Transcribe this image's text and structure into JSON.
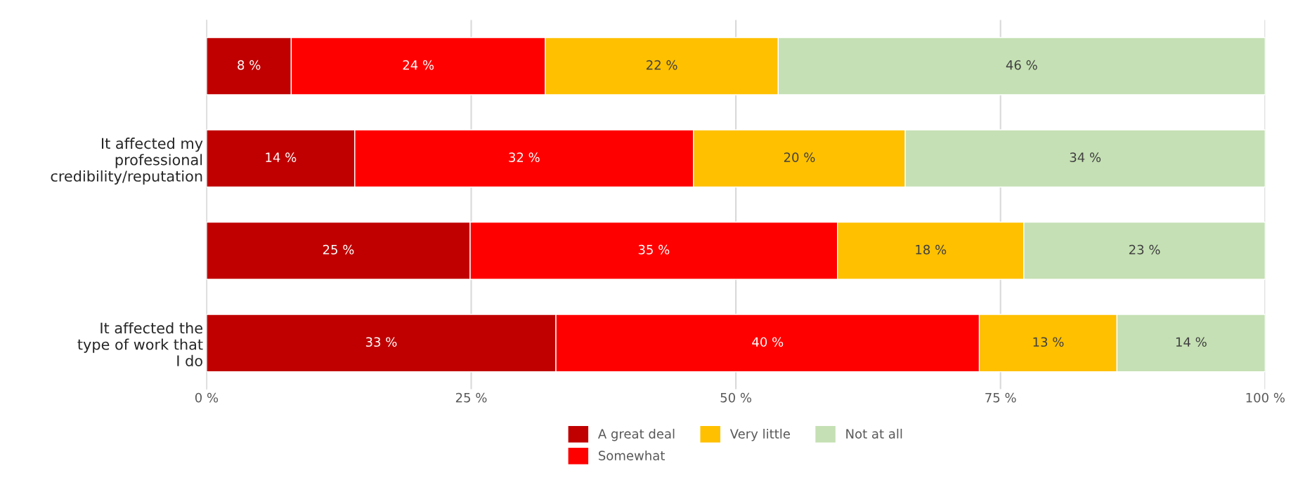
{
  "chart_data": {
    "type": "bar",
    "orientation": "horizontal",
    "stacked": true,
    "categories": [
      null,
      "It affected my professional credibility/reputation",
      null,
      "It affected the type of work that I do"
    ],
    "series": [
      {
        "name": "A great deal",
        "color": "#c00000",
        "values": [
          8,
          14,
          24.9,
          33
        ],
        "value_labels": [
          "8 %",
          "14 %",
          "25 %",
          "33 %"
        ]
      },
      {
        "name": "Somewhat",
        "color": "#ff0000",
        "values": [
          24,
          32,
          34.7,
          40
        ],
        "value_labels": [
          "24 %",
          "32 %",
          "35 %",
          "40 %"
        ]
      },
      {
        "name": "Very little",
        "color": "#ffc000",
        "values": [
          22,
          20,
          17.6,
          13
        ],
        "value_labels": [
          "22 %",
          "20 %",
          "18 %",
          "13 %"
        ]
      },
      {
        "name": "Not at all",
        "color": "#c5e0b4",
        "values": [
          46,
          34,
          22.8,
          14
        ],
        "value_labels": [
          "46 %",
          "34 %",
          "23 %",
          "14 %"
        ]
      }
    ],
    "xlim": [
      0,
      100
    ],
    "xticks": [
      {
        "value": 0,
        "label": "0 %"
      },
      {
        "value": 25,
        "label": "25 %"
      },
      {
        "value": 50,
        "label": "50 %"
      },
      {
        "value": 75,
        "label": "75 %"
      },
      {
        "value": 100,
        "label": "100 %"
      }
    ],
    "grid": "x",
    "legend": "bottom"
  }
}
